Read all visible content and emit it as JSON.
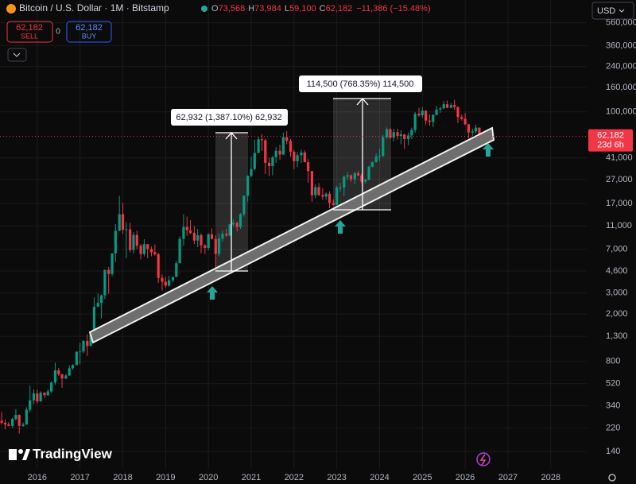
{
  "header": {
    "symbol": "Bitcoin / U.S. Dollar · 1M · Bitstamp",
    "open_label": "O",
    "open": "73,568",
    "high_label": "H",
    "high": "73,984",
    "low_label": "L",
    "low": "59,100",
    "close_label": "C",
    "close": "62,182",
    "change": "−11,386 (−15.48%)"
  },
  "trade": {
    "sell_price": "62,182",
    "sell": "SELL",
    "spread": "0",
    "buy_price": "62,182",
    "buy": "BUY"
  },
  "currency": "USD",
  "branding": "TradingView",
  "chart_data": {
    "type": "candlestick",
    "log_scale": true,
    "grid": true,
    "up_color": "#089981",
    "down_color": "#f23645",
    "xlim": [
      2015.13,
      2028.84
    ],
    "xticks": [
      2016,
      2017,
      2018,
      2019,
      2020,
      2021,
      2022,
      2023,
      2024,
      2025,
      2026,
      2027,
      2028
    ],
    "ylim": [
      100,
      870000
    ],
    "yticks": [
      140,
      220,
      340,
      520,
      800,
      {
        "value": 1300,
        "label": "1,300"
      },
      {
        "value": 2000,
        "label": "2,000"
      },
      {
        "value": 3000,
        "label": "3,000"
      },
      {
        "value": 4600,
        "label": "4,600"
      },
      {
        "value": 7000,
        "label": "7,000"
      },
      {
        "value": 11000,
        "label": "11,000"
      },
      {
        "value": 17000,
        "label": "17,000"
      },
      {
        "value": 27000,
        "label": "27,000"
      },
      {
        "value": 41000,
        "label": "41,000"
      },
      {
        "value": 100000,
        "label": "100,000"
      },
      {
        "value": 160000,
        "label": "160,000"
      },
      {
        "value": 240000,
        "label": "240,000"
      },
      {
        "value": 360000,
        "label": "360,000"
      },
      {
        "value": 560000,
        "label": "560,000"
      }
    ],
    "last_price": {
      "value": 62182,
      "label": "62,182"
    },
    "countdown": "23d 6h",
    "annotations": [
      "62,932 (1,387.10%) 62,932",
      "114,500 (768.35%) 114,500"
    ],
    "x": [
      2015.17,
      2015.25,
      2015.33,
      2015.42,
      2015.5,
      2015.58,
      2015.67,
      2015.75,
      2015.83,
      2015.92,
      2016,
      2016.08,
      2016.17,
      2016.25,
      2016.33,
      2016.42,
      2016.5,
      2016.58,
      2016.67,
      2016.75,
      2016.83,
      2016.92,
      2017,
      2017.08,
      2017.17,
      2017.25,
      2017.33,
      2017.42,
      2017.5,
      2017.58,
      2017.67,
      2017.75,
      2017.83,
      2017.92,
      2018,
      2018.08,
      2018.17,
      2018.25,
      2018.33,
      2018.42,
      2018.5,
      2018.58,
      2018.67,
      2018.75,
      2018.83,
      2018.92,
      2019,
      2019.08,
      2019.17,
      2019.25,
      2019.33,
      2019.42,
      2019.5,
      2019.58,
      2019.67,
      2019.75,
      2019.83,
      2019.92,
      2020,
      2020.08,
      2020.17,
      2020.25,
      2020.33,
      2020.42,
      2020.5,
      2020.58,
      2020.67,
      2020.75,
      2020.83,
      2020.92,
      2021,
      2021.08,
      2021.17,
      2021.25,
      2021.33,
      2021.42,
      2021.5,
      2021.58,
      2021.67,
      2021.75,
      2021.83,
      2021.92,
      2022,
      2022.08,
      2022.17,
      2022.25,
      2022.33,
      2022.42,
      2022.5,
      2022.58,
      2022.67,
      2022.75,
      2022.83,
      2022.92,
      2023,
      2023.08,
      2023.17,
      2023.25,
      2023.33,
      2023.42,
      2023.5,
      2023.58,
      2023.67,
      2023.75,
      2023.83,
      2023.92,
      2024,
      2024.08,
      2024.17,
      2024.25,
      2024.33,
      2024.42,
      2024.5,
      2024.58,
      2024.67,
      2024.75,
      2024.83,
      2024.92,
      2025,
      2025.08,
      2025.17,
      2025.25,
      2025.33,
      2025.42,
      2025.5,
      2025.58,
      2025.67,
      2025.75,
      2025.83,
      2025.92,
      2026,
      2026.08,
      2026.17,
      2026.25,
      2026.33
    ],
    "candles": [
      [
        254,
        300,
        236,
        244
      ],
      [
        244,
        261,
        214,
        236
      ],
      [
        236,
        247,
        228,
        230
      ],
      [
        230,
        268,
        221,
        263
      ],
      [
        263,
        317,
        255,
        284
      ],
      [
        284,
        287,
        198,
        230
      ],
      [
        230,
        246,
        226,
        236
      ],
      [
        236,
        330,
        235,
        314
      ],
      [
        314,
        502,
        300,
        377
      ],
      [
        377,
        465,
        350,
        430
      ],
      [
        430,
        462,
        354,
        369
      ],
      [
        369,
        448,
        366,
        437
      ],
      [
        437,
        439,
        395,
        416
      ],
      [
        416,
        467,
        412,
        448
      ],
      [
        448,
        548,
        436,
        531
      ],
      [
        531,
        780,
        510,
        673
      ],
      [
        673,
        704,
        605,
        624
      ],
      [
        624,
        627,
        480,
        575
      ],
      [
        575,
        628,
        568,
        609
      ],
      [
        609,
        740,
        605,
        701
      ],
      [
        701,
        756,
        681,
        745
      ],
      [
        745,
        975,
        742,
        964
      ],
      [
        964,
        1150,
        755,
        970
      ],
      [
        970,
        1210,
        937,
        1190
      ],
      [
        1190,
        1350,
        890,
        1080
      ],
      [
        1080,
        1350,
        1075,
        1348
      ],
      [
        1348,
        2760,
        1348,
        2300
      ],
      [
        2300,
        2980,
        2300,
        2480
      ],
      [
        2480,
        2920,
        1830,
        2875
      ],
      [
        2875,
        4700,
        2670,
        4700
      ],
      [
        4700,
        4980,
        2950,
        4340
      ],
      [
        4340,
        6470,
        4150,
        6470
      ],
      [
        6470,
        11400,
        5500,
        10000
      ],
      [
        10000,
        19700,
        10000,
        13800
      ],
      [
        13800,
        17200,
        9400,
        10200
      ],
      [
        10200,
        11800,
        5900,
        10300
      ],
      [
        10300,
        11700,
        6600,
        6900
      ],
      [
        6900,
        9750,
        6450,
        9240
      ],
      [
        9240,
        10000,
        7000,
        7500
      ],
      [
        7500,
        7760,
        5760,
        6390
      ],
      [
        6390,
        8500,
        6100,
        7730
      ],
      [
        7730,
        7760,
        5880,
        7040
      ],
      [
        7040,
        7400,
        6120,
        6620
      ],
      [
        6620,
        7680,
        6200,
        6370
      ],
      [
        6370,
        6550,
        3650,
        4020
      ],
      [
        4020,
        4300,
        3150,
        3740
      ],
      [
        3740,
        4110,
        3350,
        3460
      ],
      [
        3460,
        4200,
        3400,
        3850
      ],
      [
        3850,
        4100,
        3700,
        4100
      ],
      [
        4100,
        5600,
        4100,
        5350
      ],
      [
        5350,
        9000,
        5330,
        8570
      ],
      [
        8570,
        13800,
        7500,
        10800
      ],
      [
        10800,
        13200,
        9100,
        10090
      ],
      [
        10090,
        12300,
        9400,
        9600
      ],
      [
        9600,
        10950,
        7750,
        8290
      ],
      [
        8290,
        10400,
        7300,
        9200
      ],
      [
        9200,
        9500,
        6500,
        7550
      ],
      [
        7550,
        7750,
        6400,
        7190
      ],
      [
        7190,
        9570,
        6870,
        9350
      ],
      [
        9350,
        10500,
        8450,
        8540
      ],
      [
        8540,
        9180,
        3850,
        6410
      ],
      [
        6410,
        9460,
        6150,
        8620
      ],
      [
        8620,
        10060,
        8120,
        9450
      ],
      [
        9450,
        10380,
        8900,
        9140
      ],
      [
        9140,
        11440,
        8980,
        11330
      ],
      [
        11330,
        12470,
        10900,
        11650
      ],
      [
        11650,
        12050,
        9880,
        10780
      ],
      [
        10780,
        14100,
        10380,
        13800
      ],
      [
        13800,
        19900,
        13200,
        19700
      ],
      [
        19700,
        29300,
        17600,
        28990
      ],
      [
        28990,
        42000,
        28100,
        33100
      ],
      [
        33100,
        58300,
        32300,
        45200
      ],
      [
        45200,
        61800,
        44900,
        58800
      ],
      [
        58800,
        64900,
        47000,
        57700
      ],
      [
        57700,
        59500,
        30000,
        37300
      ],
      [
        37300,
        41300,
        28800,
        35000
      ],
      [
        35000,
        42400,
        29300,
        41500
      ],
      [
        41500,
        50500,
        37300,
        47100
      ],
      [
        47100,
        52900,
        39600,
        43800
      ],
      [
        43800,
        67000,
        43300,
        61300
      ],
      [
        61300,
        69000,
        53300,
        57000
      ],
      [
        57000,
        59100,
        42000,
        46200
      ],
      [
        46200,
        47900,
        32900,
        38500
      ],
      [
        38500,
        45800,
        34300,
        43200
      ],
      [
        43200,
        48200,
        37200,
        45500
      ],
      [
        45500,
        47400,
        37600,
        37700
      ],
      [
        37700,
        40000,
        25400,
        31800
      ],
      [
        31800,
        31900,
        17600,
        19900
      ],
      [
        19900,
        24700,
        18800,
        23300
      ],
      [
        23300,
        25200,
        19600,
        20000
      ],
      [
        20000,
        22800,
        18200,
        19400
      ],
      [
        19400,
        21100,
        18200,
        20500
      ],
      [
        20500,
        21500,
        15500,
        17200
      ],
      [
        17200,
        18400,
        16300,
        16500
      ],
      [
        16500,
        23900,
        16500,
        23100
      ],
      [
        23100,
        25300,
        21400,
        23100
      ],
      [
        23100,
        29200,
        19600,
        28500
      ],
      [
        28500,
        31000,
        26900,
        29300
      ],
      [
        29300,
        29800,
        25800,
        27200
      ],
      [
        27200,
        31400,
        24800,
        30500
      ],
      [
        30500,
        31800,
        28900,
        29200
      ],
      [
        29200,
        30200,
        25200,
        25900
      ],
      [
        25900,
        27500,
        24900,
        26900
      ],
      [
        26900,
        35200,
        26600,
        34600
      ],
      [
        34600,
        38400,
        34100,
        37700
      ],
      [
        37700,
        44700,
        37600,
        42300
      ],
      [
        42300,
        48900,
        38500,
        42600
      ],
      [
        42600,
        64000,
        41900,
        61200
      ],
      [
        61200,
        73800,
        59300,
        71300
      ],
      [
        71300,
        72800,
        59200,
        60700
      ],
      [
        60700,
        71900,
        56600,
        67500
      ],
      [
        67500,
        71900,
        58500,
        62700
      ],
      [
        62700,
        70000,
        53500,
        64600
      ],
      [
        64600,
        65100,
        49000,
        59000
      ],
      [
        59000,
        66500,
        52600,
        63300
      ],
      [
        63300,
        73600,
        58900,
        70300
      ],
      [
        70300,
        99600,
        66800,
        96400
      ],
      [
        96400,
        108300,
        90700,
        93400
      ],
      [
        93400,
        109300,
        89200,
        102400
      ],
      [
        102400,
        102700,
        78200,
        84400
      ],
      [
        84400,
        95000,
        76700,
        82500
      ],
      [
        82500,
        95700,
        74400,
        94200
      ],
      [
        94200,
        111900,
        93400,
        104600
      ],
      [
        104600,
        110600,
        98200,
        107100
      ],
      [
        107100,
        123200,
        105200,
        115800
      ],
      [
        115800,
        124500,
        107300,
        108200
      ],
      [
        108200,
        117900,
        107300,
        114000
      ],
      [
        114000,
        126200,
        104000,
        109600
      ],
      [
        109600,
        111200,
        80500,
        90400
      ],
      [
        90400,
        94600,
        84500,
        87600
      ],
      [
        87600,
        97900,
        77000,
        78600
      ],
      [
        78600,
        79000,
        60000,
        67000
      ],
      [
        67000,
        72000,
        62500,
        68500
      ],
      [
        68500,
        78000,
        66000,
        73568
      ],
      [
        73568,
        73984,
        59100,
        62182
      ]
    ]
  }
}
